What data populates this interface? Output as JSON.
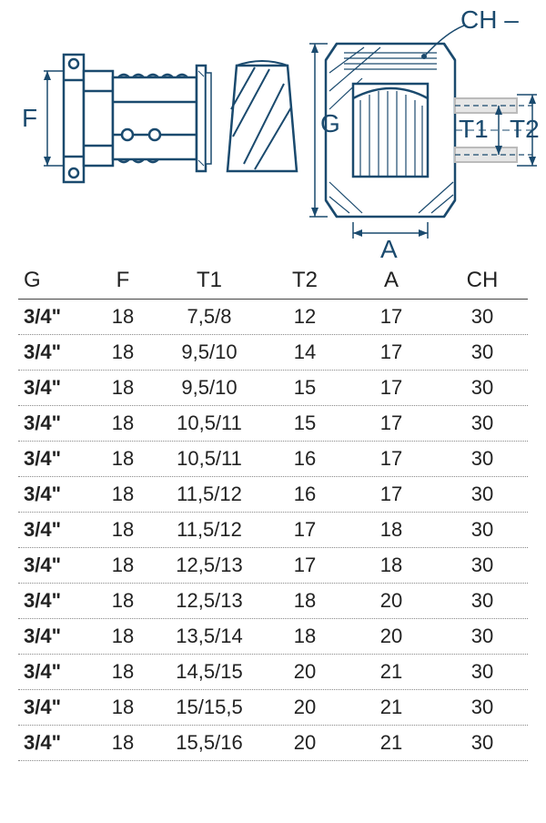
{
  "colors": {
    "label_color": "#1a4a6e",
    "border_color": "#444444",
    "dotted_color": "#888888",
    "background": "#ffffff",
    "diagram_stroke": "#1a4a6e",
    "diagram_light": "#cccccc",
    "text_color": "#222222"
  },
  "typography": {
    "header_fontsize": 24,
    "cell_fontsize": 22,
    "label_fontsize": 28
  },
  "diagram": {
    "labels": {
      "F": "F",
      "G": "G",
      "A": "A",
      "T1": "T1",
      "T2": "T2",
      "CH": "CH –"
    }
  },
  "table": {
    "columns": [
      "G",
      "F",
      "T1",
      "T2",
      "A",
      "CH"
    ],
    "headers": {
      "G": "G",
      "F": "F",
      "T1": "T1",
      "T2": "T2",
      "A": "A",
      "CH": "CH"
    },
    "rows": [
      {
        "G": "3/4\"",
        "F": "18",
        "T1": "7,5/8",
        "T2": "12",
        "A": "17",
        "CH": "30"
      },
      {
        "G": "3/4\"",
        "F": "18",
        "T1": "9,5/10",
        "T2": "14",
        "A": "17",
        "CH": "30"
      },
      {
        "G": "3/4\"",
        "F": "18",
        "T1": "9,5/10",
        "T2": "15",
        "A": "17",
        "CH": "30"
      },
      {
        "G": "3/4\"",
        "F": "18",
        "T1": "10,5/11",
        "T2": "15",
        "A": "17",
        "CH": "30"
      },
      {
        "G": "3/4\"",
        "F": "18",
        "T1": "10,5/11",
        "T2": "16",
        "A": "17",
        "CH": "30"
      },
      {
        "G": "3/4\"",
        "F": "18",
        "T1": "11,5/12",
        "T2": "16",
        "A": "17",
        "CH": "30"
      },
      {
        "G": "3/4\"",
        "F": "18",
        "T1": "11,5/12",
        "T2": "17",
        "A": "18",
        "CH": "30"
      },
      {
        "G": "3/4\"",
        "F": "18",
        "T1": "12,5/13",
        "T2": "17",
        "A": "18",
        "CH": "30"
      },
      {
        "G": "3/4\"",
        "F": "18",
        "T1": "12,5/13",
        "T2": "18",
        "A": "20",
        "CH": "30"
      },
      {
        "G": "3/4\"",
        "F": "18",
        "T1": "13,5/14",
        "T2": "18",
        "A": "20",
        "CH": "30"
      },
      {
        "G": "3/4\"",
        "F": "18",
        "T1": "14,5/15",
        "T2": "20",
        "A": "21",
        "CH": "30"
      },
      {
        "G": "3/4\"",
        "F": "18",
        "T1": "15/15,5",
        "T2": "20",
        "A": "21",
        "CH": "30"
      },
      {
        "G": "3/4\"",
        "F": "18",
        "T1": "15,5/16",
        "T2": "20",
        "A": "21",
        "CH": "30"
      }
    ]
  }
}
